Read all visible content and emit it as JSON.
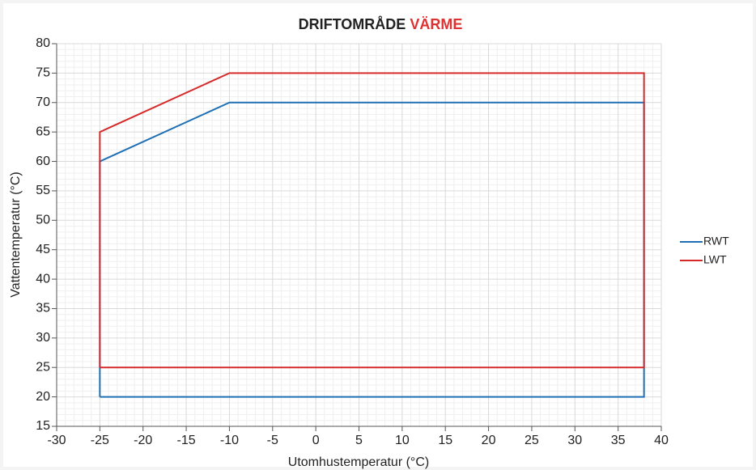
{
  "chart_data": {
    "type": "line",
    "title_parts": [
      {
        "text": "DRIFTOMRÅDE",
        "color": "#222222"
      },
      {
        "text": "VÄRME",
        "color": "#e03131"
      }
    ],
    "xlabel": "Utomhustemperatur (°C)",
    "ylabel": "Vattentemperatur (°C)",
    "xlim": [
      -30,
      40
    ],
    "xticks": [
      -30,
      -25,
      -20,
      -15,
      -10,
      -5,
      0,
      5,
      10,
      15,
      20,
      25,
      30,
      35,
      40
    ],
    "ylim": [
      15,
      80
    ],
    "yticks": [
      15,
      20,
      25,
      30,
      35,
      40,
      45,
      50,
      55,
      60,
      65,
      70,
      75,
      80
    ],
    "grid": true,
    "minor_grid": true,
    "legend": "right",
    "series": [
      {
        "name": "RWT",
        "color": "#1f6fb4",
        "x": [
          -25,
          -25,
          -10,
          38,
          38,
          -25
        ],
        "values": [
          20,
          60,
          70,
          70,
          20,
          20
        ]
      },
      {
        "name": "LWT",
        "color": "#d62a2a",
        "x": [
          -25,
          -25,
          -10,
          38,
          38,
          -25
        ],
        "values": [
          25,
          65,
          75,
          75,
          25,
          25
        ]
      }
    ]
  }
}
